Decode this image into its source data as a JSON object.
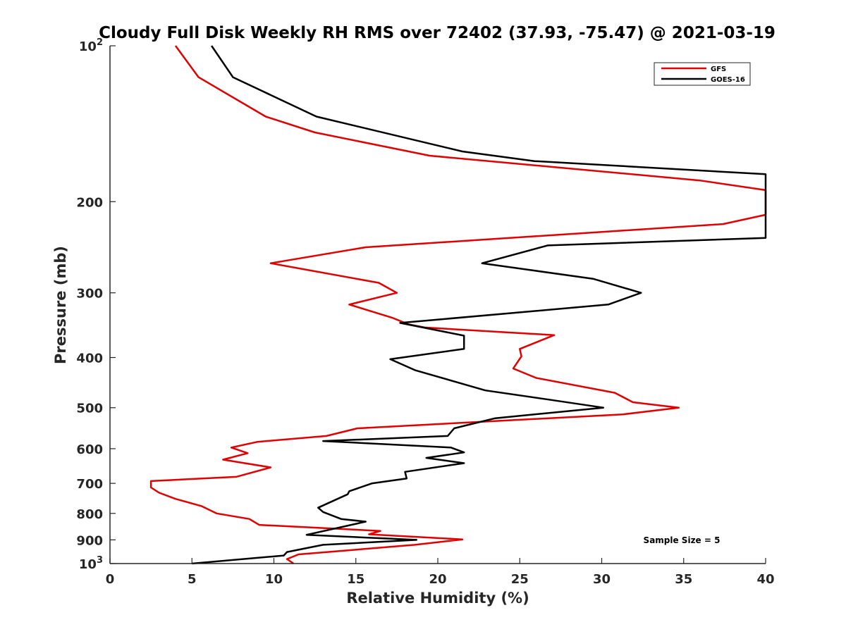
{
  "chart_data": {
    "type": "line",
    "title": "Cloudy Full Disk Weekly RH RMS over 72402 (37.93, -75.47) @ 2021-03-19",
    "xlabel": "Relative Humidity (%)",
    "ylabel": "Pressure (mb)",
    "xlim": [
      0,
      40
    ],
    "ylim": [
      100,
      1000
    ],
    "y_scale": "log",
    "y_reversed": true,
    "x_ticks": [
      "0",
      "5",
      "10",
      "15",
      "20",
      "25",
      "30",
      "35",
      "40"
    ],
    "y_ticks": [
      {
        "value": 100,
        "base": "10",
        "exp": "2"
      },
      {
        "value": 200,
        "label": "200"
      },
      {
        "value": 300,
        "label": "300"
      },
      {
        "value": 400,
        "label": "400"
      },
      {
        "value": 500,
        "label": "500"
      },
      {
        "value": 600,
        "label": "600"
      },
      {
        "value": 700,
        "label": "700"
      },
      {
        "value": 800,
        "label": "800"
      },
      {
        "value": 900,
        "label": "900"
      },
      {
        "value": 1000,
        "base": "10",
        "exp": "3"
      }
    ],
    "grid": false,
    "legend_position": "top-right",
    "annotation": "Sample Size = 5",
    "series": [
      {
        "name": "GFS",
        "color": "#e00000",
        "points": [
          [
            4.0,
            100
          ],
          [
            5.4,
            115
          ],
          [
            9.5,
            137
          ],
          [
            12.5,
            147
          ],
          [
            19.5,
            163
          ],
          [
            36.0,
            182
          ],
          [
            40.0,
            190
          ],
          [
            40.0,
            212
          ],
          [
            37.4,
            221
          ],
          [
            15.6,
            245
          ],
          [
            9.8,
            263
          ],
          [
            16.4,
            287
          ],
          [
            17.5,
            300
          ],
          [
            14.6,
            316
          ],
          [
            17.2,
            335
          ],
          [
            18.2,
            345
          ],
          [
            19.2,
            350
          ],
          [
            27.1,
            362
          ],
          [
            25.0,
            385
          ],
          [
            25.1,
            398
          ],
          [
            24.6,
            420
          ],
          [
            26.0,
            438
          ],
          [
            30.8,
            468
          ],
          [
            31.9,
            488
          ],
          [
            34.7,
            500
          ],
          [
            31.3,
            515
          ],
          [
            15.1,
            548
          ],
          [
            13.2,
            567
          ],
          [
            9.0,
            582
          ],
          [
            7.4,
            597
          ],
          [
            8.4,
            612
          ],
          [
            6.9,
            630
          ],
          [
            9.8,
            652
          ],
          [
            7.7,
            680
          ],
          [
            2.5,
            693
          ],
          [
            2.5,
            713
          ],
          [
            3.0,
            730
          ],
          [
            4.0,
            750
          ],
          [
            5.6,
            775
          ],
          [
            6.5,
            800
          ],
          [
            8.5,
            820
          ],
          [
            9.1,
            842
          ],
          [
            16.5,
            865
          ],
          [
            15.8,
            878
          ],
          [
            21.5,
            898
          ],
          [
            18.6,
            920
          ],
          [
            11.5,
            960
          ],
          [
            10.8,
            980
          ],
          [
            11.2,
            1000
          ]
        ]
      },
      {
        "name": "GOES-16",
        "color": "#000000",
        "points": [
          [
            6.2,
            100
          ],
          [
            7.5,
            115
          ],
          [
            12.6,
            137
          ],
          [
            21.5,
            160
          ],
          [
            25.9,
            167
          ],
          [
            40.0,
            177
          ],
          [
            40.0,
            235
          ],
          [
            26.7,
            243
          ],
          [
            22.7,
            263
          ],
          [
            29.5,
            282
          ],
          [
            32.4,
            300
          ],
          [
            30.4,
            316
          ],
          [
            17.7,
            343
          ],
          [
            21.6,
            363
          ],
          [
            21.6,
            385
          ],
          [
            17.1,
            403
          ],
          [
            18.6,
            423
          ],
          [
            22.9,
            463
          ],
          [
            26.9,
            483
          ],
          [
            30.1,
            500
          ],
          [
            23.5,
            524
          ],
          [
            21.0,
            548
          ],
          [
            20.6,
            567
          ],
          [
            13.0,
            580
          ],
          [
            20.8,
            597
          ],
          [
            21.6,
            610
          ],
          [
            19.3,
            625
          ],
          [
            21.6,
            640
          ],
          [
            18.0,
            665
          ],
          [
            18.1,
            685
          ],
          [
            16.0,
            700
          ],
          [
            14.6,
            725
          ],
          [
            14.5,
            735
          ],
          [
            12.7,
            780
          ],
          [
            13.0,
            795
          ],
          [
            14.1,
            820
          ],
          [
            15.6,
            830
          ],
          [
            12.0,
            880
          ],
          [
            18.7,
            900
          ],
          [
            13.0,
            920
          ],
          [
            10.8,
            950
          ],
          [
            10.6,
            965
          ],
          [
            5.0,
            1000
          ]
        ]
      }
    ]
  }
}
